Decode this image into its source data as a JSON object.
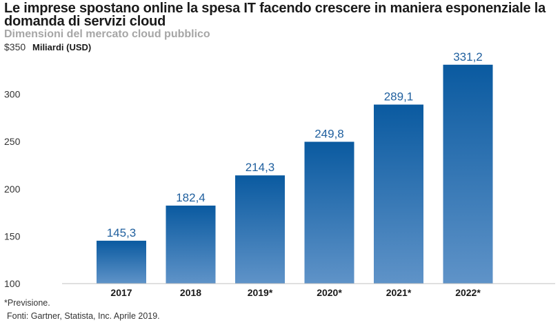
{
  "chart_data": {
    "type": "bar",
    "title": "Le imprese spostano online la spesa IT facendo crescere in maniera esponenziale la domanda di servizi cloud",
    "subtitle": "Dimensioni del mercato cloud pubblico",
    "yunit": "Miliardi (USD)",
    "ytick_labels": [
      "100",
      "150",
      "200",
      "250",
      "300",
      "$350"
    ],
    "yticks": [
      100,
      150,
      200,
      250,
      300,
      350
    ],
    "ylim": [
      100,
      350
    ],
    "categories": [
      "2017",
      "2018",
      "2019*",
      "2020*",
      "2021*",
      "2022*"
    ],
    "values": [
      145.3,
      182.4,
      214.3,
      249.8,
      289.1,
      331.2
    ],
    "value_labels": [
      "145,3",
      "182,4",
      "214,3",
      "249,8",
      "289,1",
      "331,2"
    ],
    "bar_color_top": "#0a5aa0",
    "bar_color_bottom": "#5f93c8",
    "value_label_color": "#1f5f9e",
    "grid": false
  },
  "footnote": "*Previsione.",
  "source": "Fonti: Gartner, Statista, Inc. Aprile 2019."
}
